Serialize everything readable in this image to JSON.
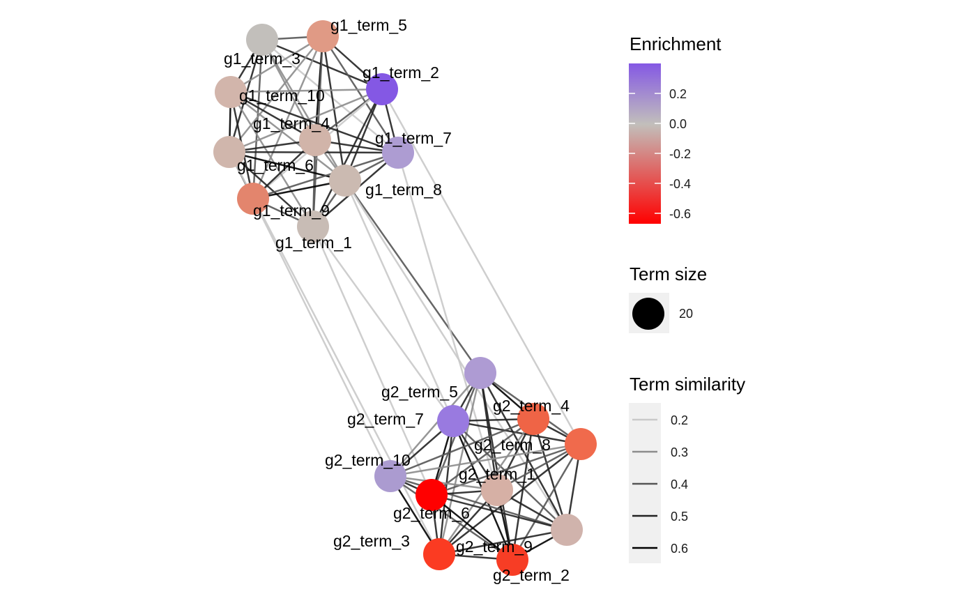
{
  "network": {
    "nodes": [
      {
        "id": "g1_term_5",
        "label": "g1_term_5",
        "enrichment": -0.25,
        "color": "#e09a85"
      },
      {
        "id": "g1_term_3",
        "label": "g1_term_3",
        "enrichment": 0.0,
        "color": "#c2bfbb"
      },
      {
        "id": "g1_term_2",
        "label": "g1_term_2",
        "enrichment": 0.4,
        "color": "#8458e4"
      },
      {
        "id": "g1_term_10",
        "label": "g1_term_10",
        "enrichment": -0.1,
        "color": "#d2b5ab"
      },
      {
        "id": "g1_term_4",
        "label": "g1_term_4",
        "enrichment": -0.1,
        "color": "#d1b4a9"
      },
      {
        "id": "g1_term_7",
        "label": "g1_term_7",
        "enrichment": 0.15,
        "color": "#ad9cd2"
      },
      {
        "id": "g1_term_6",
        "label": "g1_term_6",
        "enrichment": -0.1,
        "color": "#d0b6ac"
      },
      {
        "id": "g1_term_8",
        "label": "g1_term_8",
        "enrichment": -0.05,
        "color": "#cbbab1"
      },
      {
        "id": "g1_term_9",
        "label": "g1_term_9",
        "enrichment": -0.35,
        "color": "#e3856d"
      },
      {
        "id": "g1_term_1",
        "label": "g1_term_1",
        "enrichment": 0.0,
        "color": "#c8bcb5"
      },
      {
        "id": "g2_term_5",
        "label": "g2_term_5",
        "enrichment": 0.15,
        "color": "#ae9bd3"
      },
      {
        "id": "g2_term_7",
        "label": "g2_term_7",
        "enrichment": 0.3,
        "color": "#997ae0"
      },
      {
        "id": "g2_term_4",
        "label": "g2_term_4",
        "enrichment": -0.45,
        "color": "#ef6446"
      },
      {
        "id": "g2_term_8",
        "label": "g2_term_8",
        "enrichment": -0.45,
        "color": "#f06a4c"
      },
      {
        "id": "g2_term_10",
        "label": "g2_term_10",
        "enrichment": 0.15,
        "color": "#ab9bd0"
      },
      {
        "id": "g2_term_1",
        "label": "g2_term_1",
        "enrichment": -0.15,
        "color": "#d6b0a5"
      },
      {
        "id": "g2_term_6",
        "label": "g2_term_6",
        "enrichment": -0.65,
        "color": "#ff0000"
      },
      {
        "id": "g2_term_9",
        "label": "g2_term_9",
        "enrichment": -0.1,
        "color": "#d0b3ac"
      },
      {
        "id": "g2_term_3",
        "label": "g2_term_3",
        "enrichment": -0.55,
        "color": "#fb3b22"
      },
      {
        "id": "g2_term_2",
        "label": "g2_term_2",
        "enrichment": -0.55,
        "color": "#f73d25"
      }
    ],
    "edges": [
      [
        "g1_term_3",
        "g1_term_5",
        0.4
      ],
      [
        "g1_term_3",
        "g1_term_2",
        0.5
      ],
      [
        "g1_term_3",
        "g1_term_10",
        0.5
      ],
      [
        "g1_term_3",
        "g1_term_4",
        0.3
      ],
      [
        "g1_term_3",
        "g1_term_6",
        0.5
      ],
      [
        "g1_term_3",
        "g1_term_9",
        0.4
      ],
      [
        "g1_term_3",
        "g1_term_7",
        0.2
      ],
      [
        "g1_term_3",
        "g1_term_8",
        0.3
      ],
      [
        "g1_term_5",
        "g1_term_2",
        0.5
      ],
      [
        "g1_term_5",
        "g1_term_10",
        0.3
      ],
      [
        "g1_term_5",
        "g1_term_4",
        0.6
      ],
      [
        "g1_term_5",
        "g1_term_6",
        0.3
      ],
      [
        "g1_term_5",
        "g1_term_7",
        0.4
      ],
      [
        "g1_term_5",
        "g1_term_8",
        0.5
      ],
      [
        "g1_term_5",
        "g1_term_9",
        0.3
      ],
      [
        "g1_term_5",
        "g1_term_1",
        0.4
      ],
      [
        "g1_term_2",
        "g1_term_10",
        0.3
      ],
      [
        "g1_term_2",
        "g1_term_4",
        0.4
      ],
      [
        "g1_term_2",
        "g1_term_6",
        0.3
      ],
      [
        "g1_term_2",
        "g1_term_7",
        0.5
      ],
      [
        "g1_term_2",
        "g1_term_8",
        0.5
      ],
      [
        "g1_term_2",
        "g1_term_9",
        0.2
      ],
      [
        "g1_term_2",
        "g1_term_1",
        0.5
      ],
      [
        "g1_term_10",
        "g1_term_4",
        0.5
      ],
      [
        "g1_term_10",
        "g1_term_6",
        0.6
      ],
      [
        "g1_term_10",
        "g1_term_9",
        0.5
      ],
      [
        "g1_term_10",
        "g1_term_8",
        0.3
      ],
      [
        "g1_term_10",
        "g1_term_7",
        0.5
      ],
      [
        "g1_term_10",
        "g1_term_1",
        0.3
      ],
      [
        "g1_term_4",
        "g1_term_6",
        0.5
      ],
      [
        "g1_term_4",
        "g1_term_7",
        0.5
      ],
      [
        "g1_term_4",
        "g1_term_8",
        0.3
      ],
      [
        "g1_term_4",
        "g1_term_9",
        0.5
      ],
      [
        "g1_term_4",
        "g1_term_1",
        0.4
      ],
      [
        "g1_term_6",
        "g1_term_7",
        0.5
      ],
      [
        "g1_term_6",
        "g1_term_8",
        0.6
      ],
      [
        "g1_term_6",
        "g1_term_9",
        0.4
      ],
      [
        "g1_term_6",
        "g1_term_1",
        0.5
      ],
      [
        "g1_term_7",
        "g1_term_8",
        0.4
      ],
      [
        "g1_term_7",
        "g1_term_9",
        0.4
      ],
      [
        "g1_term_7",
        "g1_term_1",
        0.5
      ],
      [
        "g1_term_8",
        "g1_term_9",
        0.6
      ],
      [
        "g1_term_8",
        "g1_term_1",
        0.4
      ],
      [
        "g1_term_9",
        "g1_term_1",
        0.4
      ],
      [
        "g1_term_8",
        "g2_term_5",
        0.4
      ],
      [
        "g1_term_9",
        "g2_term_10",
        0.2
      ],
      [
        "g1_term_1",
        "g2_term_6",
        0.2
      ],
      [
        "g1_term_6",
        "g2_term_3",
        0.2
      ],
      [
        "g1_term_8",
        "g2_term_7",
        0.2
      ],
      [
        "g1_term_2",
        "g2_term_8",
        0.2
      ],
      [
        "g1_term_7",
        "g2_term_1",
        0.2
      ],
      [
        "g1_term_8",
        "g2_term_9",
        0.2
      ],
      [
        "g1_term_1",
        "g2_term_7",
        0.2
      ],
      [
        "g2_term_5",
        "g2_term_7",
        0.5
      ],
      [
        "g2_term_5",
        "g2_term_4",
        0.6
      ],
      [
        "g2_term_5",
        "g2_term_8",
        0.4
      ],
      [
        "g2_term_5",
        "g2_term_10",
        0.3
      ],
      [
        "g2_term_5",
        "g2_term_1",
        0.5
      ],
      [
        "g2_term_5",
        "g2_term_6",
        0.4
      ],
      [
        "g2_term_5",
        "g2_term_9",
        0.5
      ],
      [
        "g2_term_5",
        "g2_term_3",
        0.3
      ],
      [
        "g2_term_5",
        "g2_term_2",
        0.5
      ],
      [
        "g2_term_7",
        "g2_term_4",
        0.5
      ],
      [
        "g2_term_7",
        "g2_term_8",
        0.5
      ],
      [
        "g2_term_7",
        "g2_term_10",
        0.5
      ],
      [
        "g2_term_7",
        "g2_term_1",
        0.5
      ],
      [
        "g2_term_7",
        "g2_term_6",
        0.6
      ],
      [
        "g2_term_7",
        "g2_term_9",
        0.4
      ],
      [
        "g2_term_7",
        "g2_term_3",
        0.5
      ],
      [
        "g2_term_7",
        "g2_term_2",
        0.6
      ],
      [
        "g2_term_4",
        "g2_term_8",
        0.5
      ],
      [
        "g2_term_4",
        "g2_term_10",
        0.4
      ],
      [
        "g2_term_4",
        "g2_term_1",
        0.5
      ],
      [
        "g2_term_4",
        "g2_term_6",
        0.4
      ],
      [
        "g2_term_4",
        "g2_term_9",
        0.5
      ],
      [
        "g2_term_4",
        "g2_term_3",
        0.3
      ],
      [
        "g2_term_4",
        "g2_term_2",
        0.5
      ],
      [
        "g2_term_8",
        "g2_term_10",
        0.3
      ],
      [
        "g2_term_8",
        "g2_term_1",
        0.4
      ],
      [
        "g2_term_8",
        "g2_term_6",
        0.4
      ],
      [
        "g2_term_8",
        "g2_term_9",
        0.5
      ],
      [
        "g2_term_8",
        "g2_term_3",
        0.5
      ],
      [
        "g2_term_8",
        "g2_term_2",
        0.4
      ],
      [
        "g2_term_10",
        "g2_term_1",
        0.3
      ],
      [
        "g2_term_10",
        "g2_term_6",
        0.5
      ],
      [
        "g2_term_10",
        "g2_term_9",
        0.4
      ],
      [
        "g2_term_10",
        "g2_term_3",
        0.6
      ],
      [
        "g2_term_10",
        "g2_term_2",
        0.4
      ],
      [
        "g2_term_1",
        "g2_term_6",
        0.5
      ],
      [
        "g2_term_1",
        "g2_term_9",
        0.5
      ],
      [
        "g2_term_1",
        "g2_term_3",
        0.5
      ],
      [
        "g2_term_1",
        "g2_term_2",
        0.6
      ],
      [
        "g2_term_6",
        "g2_term_9",
        0.5
      ],
      [
        "g2_term_6",
        "g2_term_3",
        0.5
      ],
      [
        "g2_term_6",
        "g2_term_2",
        0.6
      ],
      [
        "g2_term_9",
        "g2_term_3",
        0.5
      ],
      [
        "g2_term_9",
        "g2_term_2",
        0.6
      ],
      [
        "g2_term_3",
        "g2_term_2",
        0.5
      ]
    ]
  },
  "legend": {
    "enrichment": {
      "title": "Enrichment",
      "ticks": [
        "0.2",
        "0.0",
        "-0.2",
        "-0.4",
        "-0.6"
      ],
      "colors": {
        "high": "#8458e4",
        "mid": "#c2bfbb",
        "low": "#ff0000"
      }
    },
    "term_size": {
      "title": "Term size",
      "value": "20"
    },
    "term_similarity": {
      "title": "Term similarity",
      "values": [
        "0.2",
        "0.3",
        "0.4",
        "0.5",
        "0.6"
      ]
    }
  }
}
